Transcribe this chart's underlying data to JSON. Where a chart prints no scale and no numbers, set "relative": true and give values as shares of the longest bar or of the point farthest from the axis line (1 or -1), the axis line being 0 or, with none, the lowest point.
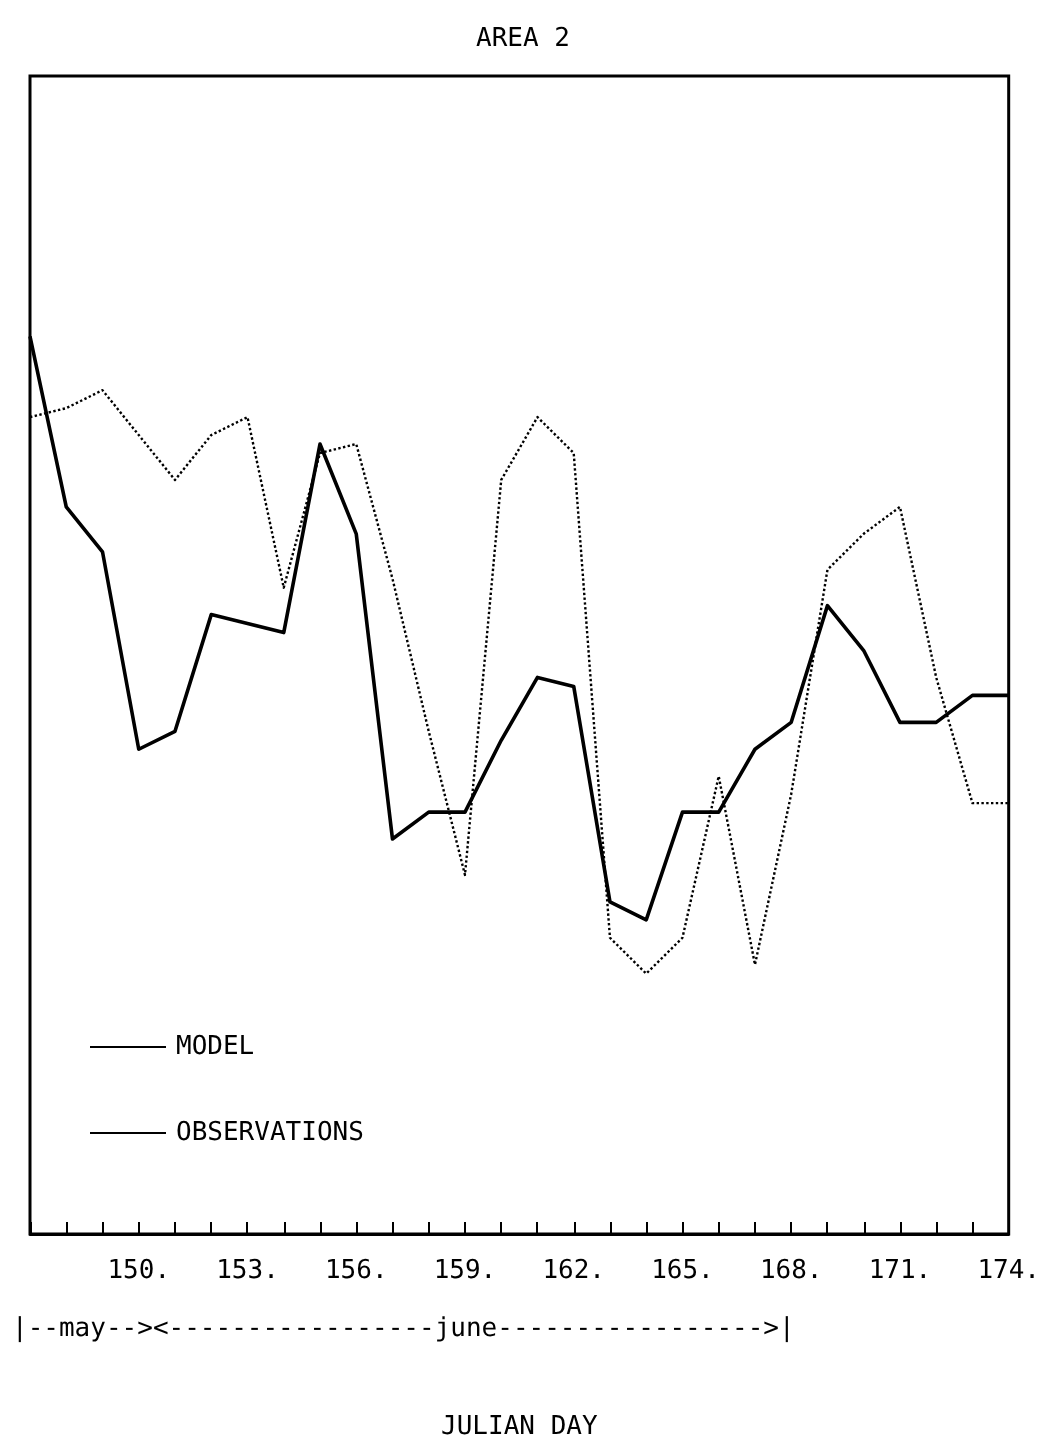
{
  "chart_data": {
    "type": "line",
    "title": "AREA 2",
    "xlabel": "JULIAN DAY",
    "relative": true,
    "annotations": [
      "|--may--><-----------------june----------------->|"
    ],
    "x": [
      147,
      148,
      149,
      150,
      151,
      152,
      153,
      154,
      155,
      156,
      157,
      158,
      159,
      160,
      161,
      162,
      163,
      164,
      165,
      166,
      167,
      168,
      169,
      170,
      171,
      172,
      173,
      174
    ],
    "xlim": [
      147,
      174
    ],
    "xticks": [
      {
        "value": 147,
        "label": null
      },
      {
        "value": 148,
        "label": null
      },
      {
        "value": 149,
        "label": null
      },
      {
        "value": 150,
        "label": "150."
      },
      {
        "value": 151,
        "label": null
      },
      {
        "value": 152,
        "label": null
      },
      {
        "value": 153,
        "label": "153."
      },
      {
        "value": 154,
        "label": null
      },
      {
        "value": 155,
        "label": null
      },
      {
        "value": 156,
        "label": "156."
      },
      {
        "value": 157,
        "label": null
      },
      {
        "value": 158,
        "label": null
      },
      {
        "value": 159,
        "label": "159."
      },
      {
        "value": 160,
        "label": null
      },
      {
        "value": 161,
        "label": null
      },
      {
        "value": 162,
        "label": "162."
      },
      {
        "value": 163,
        "label": null
      },
      {
        "value": 164,
        "label": null
      },
      {
        "value": 165,
        "label": "165."
      },
      {
        "value": 166,
        "label": null
      },
      {
        "value": 167,
        "label": null
      },
      {
        "value": 168,
        "label": "168."
      },
      {
        "value": 169,
        "label": null
      },
      {
        "value": 170,
        "label": null
      },
      {
        "value": 171,
        "label": "171."
      },
      {
        "value": 172,
        "label": null
      },
      {
        "value": 173,
        "label": null
      },
      {
        "value": 174,
        "label": "174."
      }
    ],
    "series": [
      {
        "name": "MODEL",
        "color": "#000000",
        "line_style": "solid",
        "values": [
          1.0,
          0.81,
          0.76,
          0.54,
          0.56,
          0.69,
          0.68,
          0.67,
          0.88,
          0.78,
          0.44,
          0.47,
          0.47,
          0.55,
          0.62,
          0.61,
          0.37,
          0.35,
          0.47,
          0.47,
          0.54,
          0.57,
          0.7,
          0.65,
          0.57,
          0.57,
          0.6,
          0.6
        ]
      },
      {
        "name": "OBSERVATIONS",
        "color": "#000000",
        "line_style": "dotted",
        "values": [
          0.91,
          0.92,
          0.94,
          0.89,
          0.84,
          0.89,
          0.91,
          0.72,
          0.87,
          0.88,
          0.73,
          0.56,
          0.4,
          0.84,
          0.91,
          0.87,
          0.33,
          0.29,
          0.33,
          0.51,
          0.3,
          0.49,
          0.74,
          0.78,
          0.81,
          0.62,
          0.48,
          0.48
        ]
      }
    ],
    "legend": "bottom left",
    "marker": "none",
    "grid": false
  }
}
